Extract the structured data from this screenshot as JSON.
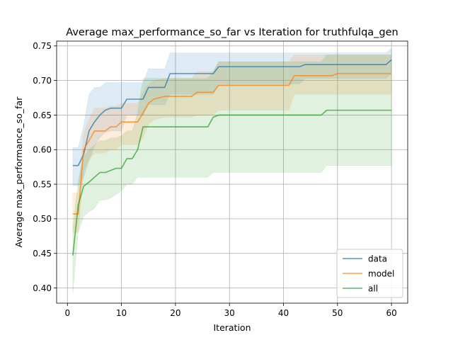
{
  "chart_data": {
    "type": "line",
    "title": "Average max_performance_so_far vs Iteration for truthfulqa_gen",
    "xlabel": "Iteration",
    "ylabel": "Average max_performance_so_far",
    "xlim": [
      -2,
      63
    ],
    "ylim": [
      0.378,
      0.757
    ],
    "xticks": [
      0,
      10,
      20,
      30,
      40,
      50,
      60
    ],
    "yticks": [
      0.4,
      0.45,
      0.5,
      0.55,
      0.6,
      0.65,
      0.7,
      0.75
    ],
    "xtick_labels": [
      "0",
      "10",
      "20",
      "30",
      "40",
      "50",
      "60"
    ],
    "ytick_labels": [
      "0.40",
      "0.45",
      "0.50",
      "0.55",
      "0.60",
      "0.65",
      "0.70",
      "0.75"
    ],
    "grid": true,
    "legend_position": "bottom-right",
    "series": [
      {
        "name": "data",
        "color": "#1f77b4",
        "points": [
          [
            1,
            0.577
          ],
          [
            2,
            0.577
          ],
          [
            3,
            0.593
          ],
          [
            4,
            0.627
          ],
          [
            5,
            0.64
          ],
          [
            6,
            0.65
          ],
          [
            7,
            0.657
          ],
          [
            8,
            0.66
          ],
          [
            10,
            0.66
          ],
          [
            11,
            0.673
          ],
          [
            14,
            0.673
          ],
          [
            15,
            0.69
          ],
          [
            18,
            0.69
          ],
          [
            19,
            0.71
          ],
          [
            27,
            0.71
          ],
          [
            28,
            0.72
          ],
          [
            43,
            0.72
          ],
          [
            44,
            0.723
          ],
          [
            59,
            0.723
          ],
          [
            60,
            0.73
          ]
        ],
        "lower": [
          [
            1,
            0.548
          ],
          [
            2,
            0.548
          ],
          [
            3,
            0.56
          ],
          [
            4,
            0.585
          ],
          [
            5,
            0.605
          ],
          [
            6,
            0.617
          ],
          [
            7,
            0.625
          ],
          [
            8,
            0.627
          ],
          [
            10,
            0.627
          ],
          [
            11,
            0.65
          ],
          [
            14,
            0.65
          ],
          [
            15,
            0.665
          ],
          [
            18,
            0.665
          ],
          [
            19,
            0.68
          ],
          [
            27,
            0.68
          ],
          [
            28,
            0.695
          ],
          [
            43,
            0.695
          ],
          [
            44,
            0.703
          ],
          [
            59,
            0.703
          ],
          [
            60,
            0.71
          ]
        ],
        "upper": [
          [
            1,
            0.603
          ],
          [
            2,
            0.603
          ],
          [
            3,
            0.635
          ],
          [
            4,
            0.68
          ],
          [
            5,
            0.69
          ],
          [
            6,
            0.69
          ],
          [
            7,
            0.697
          ],
          [
            8,
            0.697
          ],
          [
            10,
            0.697
          ],
          [
            11,
            0.697
          ],
          [
            14,
            0.697
          ],
          [
            15,
            0.717
          ],
          [
            18,
            0.717
          ],
          [
            19,
            0.74
          ],
          [
            27,
            0.74
          ],
          [
            28,
            0.74
          ],
          [
            43,
            0.74
          ],
          [
            44,
            0.74
          ],
          [
            59,
            0.74
          ],
          [
            60,
            0.747
          ]
        ]
      },
      {
        "name": "model",
        "color": "#ff7f0e",
        "points": [
          [
            1,
            0.507
          ],
          [
            2,
            0.507
          ],
          [
            3,
            0.6
          ],
          [
            4,
            0.613
          ],
          [
            5,
            0.627
          ],
          [
            7,
            0.627
          ],
          [
            8,
            0.633
          ],
          [
            9,
            0.633
          ],
          [
            10,
            0.64
          ],
          [
            13,
            0.64
          ],
          [
            14,
            0.653
          ],
          [
            15,
            0.667
          ],
          [
            16,
            0.673
          ],
          [
            18,
            0.677
          ],
          [
            23,
            0.677
          ],
          [
            24,
            0.683
          ],
          [
            27,
            0.683
          ],
          [
            28,
            0.693
          ],
          [
            41,
            0.693
          ],
          [
            42,
            0.707
          ],
          [
            49,
            0.707
          ],
          [
            50,
            0.71
          ],
          [
            60,
            0.71
          ]
        ],
        "lower": [
          [
            1,
            0.48
          ],
          [
            2,
            0.48
          ],
          [
            3,
            0.57
          ],
          [
            4,
            0.585
          ],
          [
            5,
            0.595
          ],
          [
            7,
            0.595
          ],
          [
            8,
            0.6
          ],
          [
            9,
            0.6
          ],
          [
            10,
            0.607
          ],
          [
            13,
            0.607
          ],
          [
            14,
            0.617
          ],
          [
            15,
            0.637
          ],
          [
            16,
            0.643
          ],
          [
            18,
            0.647
          ],
          [
            23,
            0.647
          ],
          [
            24,
            0.65
          ],
          [
            27,
            0.65
          ],
          [
            28,
            0.657
          ],
          [
            41,
            0.657
          ],
          [
            42,
            0.68
          ],
          [
            49,
            0.68
          ],
          [
            50,
            0.68
          ],
          [
            60,
            0.68
          ]
        ],
        "upper": [
          [
            1,
            0.537
          ],
          [
            2,
            0.537
          ],
          [
            3,
            0.625
          ],
          [
            4,
            0.643
          ],
          [
            5,
            0.66
          ],
          [
            7,
            0.66
          ],
          [
            8,
            0.663
          ],
          [
            9,
            0.663
          ],
          [
            10,
            0.667
          ],
          [
            13,
            0.667
          ],
          [
            14,
            0.683
          ],
          [
            15,
            0.695
          ],
          [
            16,
            0.7
          ],
          [
            18,
            0.703
          ],
          [
            23,
            0.703
          ],
          [
            24,
            0.713
          ],
          [
            27,
            0.713
          ],
          [
            28,
            0.727
          ],
          [
            41,
            0.727
          ],
          [
            42,
            0.737
          ],
          [
            49,
            0.737
          ],
          [
            50,
            0.737
          ],
          [
            60,
            0.737
          ]
        ]
      },
      {
        "name": "all",
        "color": "#2ca02c",
        "points": [
          [
            1,
            0.447
          ],
          [
            2,
            0.52
          ],
          [
            3,
            0.547
          ],
          [
            4,
            0.553
          ],
          [
            5,
            0.56
          ],
          [
            6,
            0.567
          ],
          [
            7,
            0.567
          ],
          [
            8,
            0.57
          ],
          [
            9,
            0.573
          ],
          [
            10,
            0.573
          ],
          [
            11,
            0.587
          ],
          [
            12,
            0.587
          ],
          [
            13,
            0.6
          ],
          [
            14,
            0.633
          ],
          [
            26,
            0.633
          ],
          [
            27,
            0.647
          ],
          [
            28,
            0.65
          ],
          [
            47,
            0.65
          ],
          [
            48,
            0.657
          ],
          [
            60,
            0.657
          ]
        ],
        "lower": [
          [
            1,
            0.393
          ],
          [
            2,
            0.48
          ],
          [
            3,
            0.503
          ],
          [
            4,
            0.51
          ],
          [
            5,
            0.515
          ],
          [
            6,
            0.527
          ],
          [
            7,
            0.527
          ],
          [
            8,
            0.53
          ],
          [
            9,
            0.535
          ],
          [
            10,
            0.54
          ],
          [
            11,
            0.55
          ],
          [
            12,
            0.55
          ],
          [
            13,
            0.56
          ],
          [
            14,
            0.56
          ],
          [
            26,
            0.56
          ],
          [
            27,
            0.567
          ],
          [
            28,
            0.567
          ],
          [
            47,
            0.567
          ],
          [
            48,
            0.577
          ],
          [
            60,
            0.577
          ]
        ],
        "upper": [
          [
            1,
            0.487
          ],
          [
            2,
            0.555
          ],
          [
            3,
            0.59
          ],
          [
            4,
            0.6
          ],
          [
            5,
            0.607
          ],
          [
            6,
            0.613
          ],
          [
            7,
            0.613
          ],
          [
            8,
            0.617
          ],
          [
            9,
            0.617
          ],
          [
            10,
            0.62
          ],
          [
            11,
            0.627
          ],
          [
            12,
            0.627
          ],
          [
            13,
            0.653
          ],
          [
            14,
            0.703
          ],
          [
            26,
            0.703
          ],
          [
            27,
            0.713
          ],
          [
            28,
            0.727
          ],
          [
            47,
            0.727
          ],
          [
            48,
            0.737
          ],
          [
            60,
            0.737
          ]
        ]
      }
    ]
  }
}
